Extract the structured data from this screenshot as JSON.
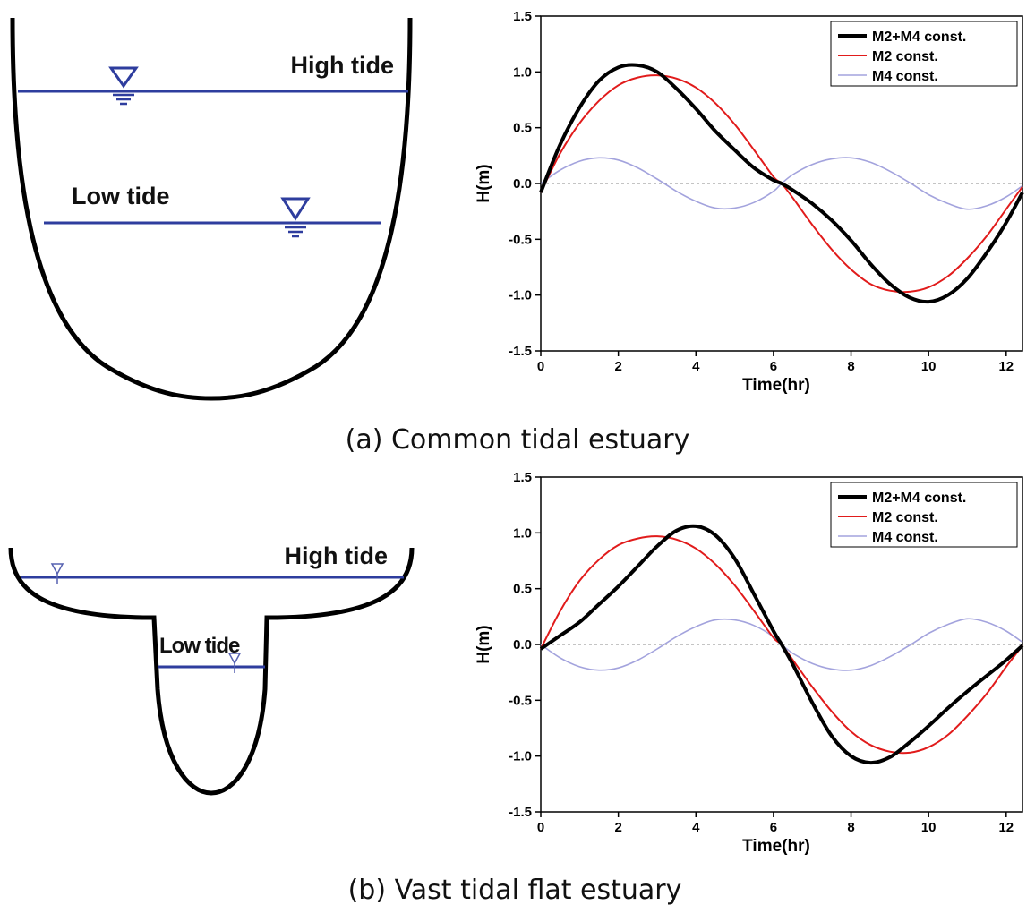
{
  "panels": [
    {
      "caption": "(a) Common tidal estuary",
      "diagram": {
        "high_label": "High tide",
        "low_label": "Low tide"
      }
    },
    {
      "caption": "(b) Vast tidal flat estuary",
      "diagram": {
        "high_label": "High tide",
        "low_label": "Low tide"
      }
    }
  ],
  "colors": {
    "water": "#2e3d9e",
    "m2m4": "#000000",
    "m2": "#e11b1b",
    "m4": "#a3a3dd"
  },
  "chart_data": [
    {
      "type": "line",
      "xlabel": "Time(hr)",
      "ylabel": "H(m)",
      "xlim": [
        0,
        12.42
      ],
      "ylim": [
        -1.5,
        1.5
      ],
      "xticks": [
        "0",
        "2",
        "4",
        "6",
        "8",
        "10",
        "12"
      ],
      "yticks": [
        "1.5",
        "1.0",
        "0.5",
        "0.0",
        "-0.5",
        "-1.0",
        "-1.5"
      ],
      "grid": "y-zero-dashed",
      "legend": "top-right",
      "series": [
        {
          "name": "M2+M4 const.",
          "x": [
            0,
            0.5,
            1,
            1.5,
            2,
            2.5,
            3,
            3.5,
            4,
            4.5,
            5,
            5.5,
            6,
            6.21,
            6.5,
            7,
            7.5,
            8,
            8.5,
            9,
            9.5,
            10,
            10.5,
            11,
            11.5,
            12,
            12.42
          ],
          "y": [
            -0.08,
            0.35,
            0.68,
            0.92,
            1.04,
            1.06,
            1.0,
            0.85,
            0.67,
            0.47,
            0.3,
            0.14,
            0.03,
            0.0,
            -0.06,
            -0.18,
            -0.33,
            -0.51,
            -0.72,
            -0.9,
            -1.02,
            -1.06,
            -1.0,
            -0.85,
            -0.62,
            -0.35,
            -0.08
          ]
        },
        {
          "name": "M2 const.",
          "x": [
            0,
            0.5,
            1,
            1.5,
            2,
            2.5,
            3,
            3.5,
            4,
            4.5,
            5,
            5.5,
            6,
            6.21,
            6.5,
            7,
            7.5,
            8,
            8.5,
            9,
            9.5,
            10,
            10.5,
            11,
            11.5,
            12,
            12.42
          ],
          "y": [
            -0.08,
            0.27,
            0.54,
            0.74,
            0.88,
            0.95,
            0.97,
            0.94,
            0.86,
            0.72,
            0.53,
            0.3,
            0.06,
            0.0,
            -0.13,
            -0.37,
            -0.59,
            -0.77,
            -0.9,
            -0.96,
            -0.97,
            -0.93,
            -0.83,
            -0.67,
            -0.47,
            -0.23,
            -0.03
          ]
        },
        {
          "name": "M4 const.",
          "x": [
            0,
            0.5,
            1,
            1.5,
            2,
            2.5,
            3,
            3.5,
            4,
            4.5,
            5,
            5.5,
            6,
            6.21,
            6.5,
            7,
            7.5,
            8,
            8.5,
            9,
            9.5,
            10,
            10.5,
            11,
            11.5,
            12,
            12.42
          ],
          "y": [
            0.0,
            0.12,
            0.2,
            0.23,
            0.21,
            0.14,
            0.04,
            -0.07,
            -0.16,
            -0.22,
            -0.22,
            -0.17,
            -0.07,
            0.0,
            0.08,
            0.17,
            0.22,
            0.23,
            0.19,
            0.11,
            0.01,
            -0.1,
            -0.18,
            -0.23,
            -0.2,
            -0.12,
            -0.02
          ]
        }
      ]
    },
    {
      "type": "line",
      "xlabel": "Time(hr)",
      "ylabel": "H(m)",
      "xlim": [
        0,
        12.42
      ],
      "ylim": [
        -1.5,
        1.5
      ],
      "xticks": [
        "0",
        "2",
        "4",
        "6",
        "8",
        "10",
        "12"
      ],
      "yticks": [
        "1.5",
        "1.0",
        "0.5",
        "0.0",
        "-0.5",
        "-1.0",
        "-1.5"
      ],
      "grid": "y-zero-dashed",
      "legend": "top-right",
      "series": [
        {
          "name": "M2+M4 const.",
          "x": [
            0,
            0.5,
            1,
            1.5,
            2,
            2.5,
            3,
            3.5,
            4,
            4.5,
            5,
            5.5,
            6,
            6.21,
            6.5,
            7,
            7.5,
            8,
            8.5,
            9,
            9.5,
            10,
            10.5,
            11,
            11.5,
            12,
            12.42
          ],
          "y": [
            -0.04,
            0.08,
            0.2,
            0.36,
            0.52,
            0.7,
            0.88,
            1.02,
            1.06,
            0.98,
            0.77,
            0.45,
            0.12,
            0.0,
            -0.18,
            -0.52,
            -0.82,
            -1.0,
            -1.06,
            -1.01,
            -0.88,
            -0.73,
            -0.57,
            -0.42,
            -0.28,
            -0.14,
            -0.01
          ]
        },
        {
          "name": "M2 const.",
          "x": [
            0,
            0.5,
            1,
            1.5,
            2,
            2.5,
            3,
            3.5,
            4,
            4.5,
            5,
            5.5,
            6,
            6.21,
            6.5,
            7,
            7.5,
            8,
            8.5,
            9,
            9.5,
            10,
            10.5,
            11,
            11.5,
            12,
            12.42
          ],
          "y": [
            -0.04,
            0.3,
            0.57,
            0.76,
            0.89,
            0.95,
            0.97,
            0.94,
            0.86,
            0.72,
            0.53,
            0.3,
            0.06,
            0.0,
            -0.14,
            -0.38,
            -0.6,
            -0.78,
            -0.9,
            -0.96,
            -0.97,
            -0.92,
            -0.81,
            -0.64,
            -0.44,
            -0.2,
            -0.01
          ]
        },
        {
          "name": "M4 const.",
          "x": [
            0,
            0.5,
            1,
            1.5,
            2,
            2.5,
            3,
            3.5,
            4,
            4.5,
            5,
            5.5,
            6,
            6.21,
            6.5,
            7,
            7.5,
            8,
            8.5,
            9,
            9.5,
            10,
            10.5,
            11,
            11.5,
            12,
            12.42
          ],
          "y": [
            0.0,
            -0.12,
            -0.2,
            -0.23,
            -0.21,
            -0.14,
            -0.04,
            0.07,
            0.16,
            0.22,
            0.22,
            0.17,
            0.07,
            0.0,
            -0.08,
            -0.17,
            -0.22,
            -0.23,
            -0.19,
            -0.11,
            -0.01,
            0.1,
            0.18,
            0.23,
            0.2,
            0.12,
            0.02
          ]
        }
      ]
    }
  ]
}
